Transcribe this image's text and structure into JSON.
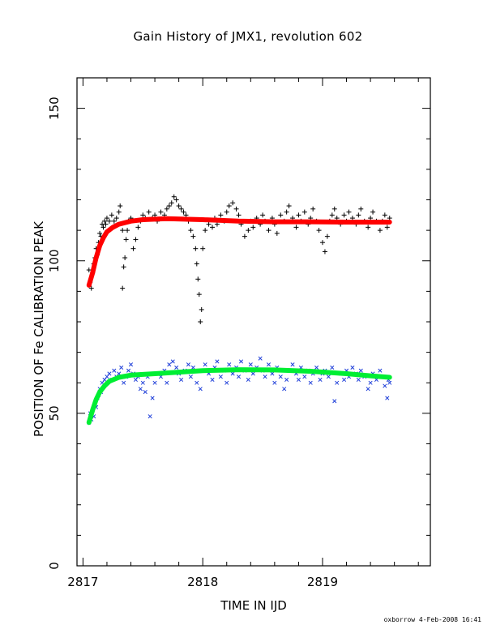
{
  "chart_data": {
    "type": "scatter",
    "title": "Gain History of JMX1, revolution 602",
    "xlabel": "TIME IN IJD",
    "ylabel": "POSITION OF Fe CALIBRATION PEAK",
    "xlim": [
      2816.95,
      2819.9
    ],
    "ylim": [
      0,
      160
    ],
    "xticks": [
      2817,
      2818,
      2819
    ],
    "yticks": [
      0,
      50,
      100,
      150
    ],
    "grid": false,
    "series": [
      {
        "marker": "+",
        "color": "#000000",
        "points": [
          [
            2817.05,
            97
          ],
          [
            2817.06,
            93
          ],
          [
            2817.07,
            91
          ],
          [
            2817.08,
            96
          ],
          [
            2817.09,
            99
          ],
          [
            2817.1,
            101
          ],
          [
            2817.11,
            104
          ],
          [
            2817.12,
            102
          ],
          [
            2817.13,
            106
          ],
          [
            2817.14,
            109
          ],
          [
            2817.15,
            108
          ],
          [
            2817.16,
            112
          ],
          [
            2817.17,
            111
          ],
          [
            2817.18,
            113
          ],
          [
            2817.19,
            112
          ],
          [
            2817.2,
            114
          ],
          [
            2817.22,
            113
          ],
          [
            2817.24,
            115
          ],
          [
            2817.26,
            113
          ],
          [
            2817.28,
            114
          ],
          [
            2817.3,
            116
          ],
          [
            2817.31,
            118
          ],
          [
            2817.33,
            110
          ],
          [
            2817.33,
            91
          ],
          [
            2817.34,
            98
          ],
          [
            2817.35,
            101
          ],
          [
            2817.36,
            107
          ],
          [
            2817.37,
            110
          ],
          [
            2817.38,
            113
          ],
          [
            2817.4,
            114
          ],
          [
            2817.42,
            104
          ],
          [
            2817.44,
            107
          ],
          [
            2817.46,
            111
          ],
          [
            2817.48,
            113
          ],
          [
            2817.5,
            115
          ],
          [
            2817.52,
            114
          ],
          [
            2817.55,
            116
          ],
          [
            2817.58,
            114
          ],
          [
            2817.6,
            115
          ],
          [
            2817.62,
            113
          ],
          [
            2817.65,
            116
          ],
          [
            2817.68,
            115
          ],
          [
            2817.7,
            117
          ],
          [
            2817.72,
            118
          ],
          [
            2817.74,
            119
          ],
          [
            2817.76,
            121
          ],
          [
            2817.78,
            120
          ],
          [
            2817.8,
            118
          ],
          [
            2817.82,
            117
          ],
          [
            2817.84,
            116
          ],
          [
            2817.86,
            115
          ],
          [
            2817.88,
            113
          ],
          [
            2817.9,
            110
          ],
          [
            2817.92,
            108
          ],
          [
            2817.94,
            104
          ],
          [
            2817.95,
            99
          ],
          [
            2817.96,
            94
          ],
          [
            2817.97,
            89
          ],
          [
            2817.98,
            80
          ],
          [
            2817.99,
            84
          ],
          [
            2818.0,
            104
          ],
          [
            2818.02,
            110
          ],
          [
            2818.05,
            112
          ],
          [
            2818.08,
            111
          ],
          [
            2818.1,
            114
          ],
          [
            2818.12,
            112
          ],
          [
            2818.15,
            115
          ],
          [
            2818.18,
            113
          ],
          [
            2818.2,
            116
          ],
          [
            2818.22,
            118
          ],
          [
            2818.25,
            119
          ],
          [
            2818.28,
            117
          ],
          [
            2818.3,
            115
          ],
          [
            2818.32,
            112
          ],
          [
            2818.35,
            108
          ],
          [
            2818.38,
            110
          ],
          [
            2818.4,
            113
          ],
          [
            2818.42,
            111
          ],
          [
            2818.45,
            114
          ],
          [
            2818.48,
            112
          ],
          [
            2818.5,
            115
          ],
          [
            2818.52,
            113
          ],
          [
            2818.55,
            110
          ],
          [
            2818.58,
            114
          ],
          [
            2818.6,
            112
          ],
          [
            2818.62,
            109
          ],
          [
            2818.65,
            115
          ],
          [
            2818.68,
            113
          ],
          [
            2818.7,
            116
          ],
          [
            2818.72,
            118
          ],
          [
            2818.75,
            114
          ],
          [
            2818.78,
            111
          ],
          [
            2818.8,
            115
          ],
          [
            2818.82,
            113
          ],
          [
            2818.85,
            116
          ],
          [
            2818.88,
            112
          ],
          [
            2818.9,
            114
          ],
          [
            2818.92,
            117
          ],
          [
            2818.95,
            113
          ],
          [
            2818.97,
            110
          ],
          [
            2819.0,
            106
          ],
          [
            2819.02,
            103
          ],
          [
            2819.04,
            108
          ],
          [
            2819.06,
            113
          ],
          [
            2819.08,
            115
          ],
          [
            2819.1,
            117
          ],
          [
            2819.12,
            114
          ],
          [
            2819.15,
            112
          ],
          [
            2819.18,
            115
          ],
          [
            2819.2,
            113
          ],
          [
            2819.22,
            116
          ],
          [
            2819.25,
            114
          ],
          [
            2819.28,
            112
          ],
          [
            2819.3,
            115
          ],
          [
            2819.32,
            117
          ],
          [
            2819.35,
            113
          ],
          [
            2819.38,
            111
          ],
          [
            2819.4,
            114
          ],
          [
            2819.42,
            116
          ],
          [
            2819.45,
            113
          ],
          [
            2819.48,
            110
          ],
          [
            2819.5,
            113
          ],
          [
            2819.52,
            115
          ],
          [
            2819.54,
            111
          ],
          [
            2819.56,
            114
          ]
        ]
      },
      {
        "marker": "x",
        "color": "#1f3fd9",
        "points": [
          [
            2817.05,
            47
          ],
          [
            2817.06,
            50
          ],
          [
            2817.07,
            48
          ],
          [
            2817.08,
            51
          ],
          [
            2817.09,
            49
          ],
          [
            2817.1,
            53
          ],
          [
            2817.11,
            52
          ],
          [
            2817.12,
            55
          ],
          [
            2817.13,
            56
          ],
          [
            2817.14,
            58
          ],
          [
            2817.15,
            57
          ],
          [
            2817.16,
            60
          ],
          [
            2817.18,
            61
          ],
          [
            2817.2,
            62
          ],
          [
            2817.22,
            63
          ],
          [
            2817.24,
            61
          ],
          [
            2817.26,
            64
          ],
          [
            2817.28,
            62
          ],
          [
            2817.3,
            63
          ],
          [
            2817.32,
            65
          ],
          [
            2817.34,
            60
          ],
          [
            2817.36,
            62
          ],
          [
            2817.38,
            64
          ],
          [
            2817.4,
            66
          ],
          [
            2817.42,
            63
          ],
          [
            2817.44,
            61
          ],
          [
            2817.46,
            62
          ],
          [
            2817.48,
            58
          ],
          [
            2817.5,
            60
          ],
          [
            2817.52,
            57
          ],
          [
            2817.54,
            62
          ],
          [
            2817.56,
            49
          ],
          [
            2817.58,
            55
          ],
          [
            2817.6,
            60
          ],
          [
            2817.62,
            63
          ],
          [
            2817.65,
            62
          ],
          [
            2817.68,
            64
          ],
          [
            2817.7,
            60
          ],
          [
            2817.72,
            66
          ],
          [
            2817.75,
            67
          ],
          [
            2817.78,
            65
          ],
          [
            2817.8,
            63
          ],
          [
            2817.82,
            61
          ],
          [
            2817.85,
            64
          ],
          [
            2817.88,
            66
          ],
          [
            2817.9,
            62
          ],
          [
            2817.92,
            65
          ],
          [
            2817.95,
            60
          ],
          [
            2817.98,
            58
          ],
          [
            2818.0,
            64
          ],
          [
            2818.02,
            66
          ],
          [
            2818.05,
            63
          ],
          [
            2818.08,
            61
          ],
          [
            2818.1,
            65
          ],
          [
            2818.12,
            67
          ],
          [
            2818.15,
            62
          ],
          [
            2818.18,
            64
          ],
          [
            2818.2,
            60
          ],
          [
            2818.22,
            66
          ],
          [
            2818.25,
            63
          ],
          [
            2818.28,
            65
          ],
          [
            2818.3,
            62
          ],
          [
            2818.32,
            67
          ],
          [
            2818.35,
            64
          ],
          [
            2818.38,
            61
          ],
          [
            2818.4,
            66
          ],
          [
            2818.42,
            63
          ],
          [
            2818.45,
            65
          ],
          [
            2818.48,
            68
          ],
          [
            2818.5,
            64
          ],
          [
            2818.52,
            62
          ],
          [
            2818.55,
            66
          ],
          [
            2818.58,
            63
          ],
          [
            2818.6,
            60
          ],
          [
            2818.62,
            65
          ],
          [
            2818.65,
            62
          ],
          [
            2818.68,
            58
          ],
          [
            2818.7,
            61
          ],
          [
            2818.72,
            64
          ],
          [
            2818.75,
            66
          ],
          [
            2818.78,
            63
          ],
          [
            2818.8,
            61
          ],
          [
            2818.82,
            65
          ],
          [
            2818.85,
            62
          ],
          [
            2818.88,
            64
          ],
          [
            2818.9,
            60
          ],
          [
            2818.92,
            63
          ],
          [
            2818.95,
            65
          ],
          [
            2818.98,
            61
          ],
          [
            2819.0,
            63
          ],
          [
            2819.02,
            64
          ],
          [
            2819.05,
            62
          ],
          [
            2819.08,
            65
          ],
          [
            2819.1,
            54
          ],
          [
            2819.12,
            60
          ],
          [
            2819.15,
            63
          ],
          [
            2819.18,
            61
          ],
          [
            2819.2,
            64
          ],
          [
            2819.22,
            62
          ],
          [
            2819.25,
            65
          ],
          [
            2819.28,
            63
          ],
          [
            2819.3,
            61
          ],
          [
            2819.32,
            64
          ],
          [
            2819.35,
            62
          ],
          [
            2819.38,
            58
          ],
          [
            2819.4,
            60
          ],
          [
            2819.42,
            63
          ],
          [
            2819.45,
            61
          ],
          [
            2819.48,
            64
          ],
          [
            2819.5,
            62
          ],
          [
            2819.52,
            59
          ],
          [
            2819.54,
            55
          ],
          [
            2819.55,
            61
          ],
          [
            2819.56,
            60
          ]
        ]
      }
    ],
    "fits": [
      {
        "color": "#ff0000",
        "points": [
          [
            2817.05,
            92
          ],
          [
            2817.08,
            96
          ],
          [
            2817.11,
            101
          ],
          [
            2817.14,
            105
          ],
          [
            2817.17,
            107.5
          ],
          [
            2817.2,
            109.5
          ],
          [
            2817.25,
            111
          ],
          [
            2817.3,
            112
          ],
          [
            2817.4,
            113
          ],
          [
            2817.5,
            113.5
          ],
          [
            2817.7,
            113.8
          ],
          [
            2818.0,
            113.5
          ],
          [
            2818.3,
            113
          ],
          [
            2818.6,
            112.8
          ],
          [
            2818.9,
            112.8
          ],
          [
            2819.2,
            112.7
          ],
          [
            2819.56,
            112.7
          ]
        ]
      },
      {
        "color": "#00ee33",
        "points": [
          [
            2817.05,
            47
          ],
          [
            2817.08,
            51
          ],
          [
            2817.11,
            54.5
          ],
          [
            2817.14,
            57
          ],
          [
            2817.18,
            59
          ],
          [
            2817.22,
            60.5
          ],
          [
            2817.3,
            61.8
          ],
          [
            2817.4,
            62.5
          ],
          [
            2817.6,
            63
          ],
          [
            2817.8,
            63.5
          ],
          [
            2818.0,
            64
          ],
          [
            2818.3,
            64.3
          ],
          [
            2818.6,
            64.2
          ],
          [
            2818.9,
            63.8
          ],
          [
            2819.2,
            63
          ],
          [
            2819.4,
            62.3
          ],
          [
            2819.56,
            61.8
          ]
        ]
      }
    ]
  },
  "footer": "oxborrow  4-Feb-2008 16:41"
}
